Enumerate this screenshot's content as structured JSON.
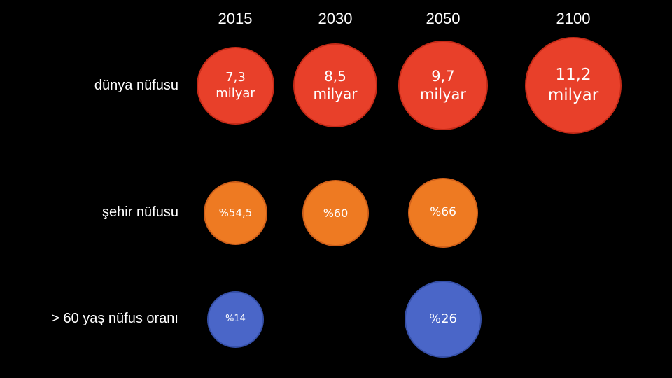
{
  "chart_data": {
    "type": "table",
    "years": [
      "2015",
      "2030",
      "2050",
      "2100"
    ],
    "rows": [
      {
        "key": "world",
        "label": "dünya nüfusu",
        "color": "#e8402a",
        "border": "#c62b18",
        "cells": [
          {
            "year": "2015",
            "value": 7.3,
            "text": [
              "7,3",
              "milyar"
            ]
          },
          {
            "year": "2030",
            "value": 8.5,
            "text": [
              "8,5",
              "milyar"
            ]
          },
          {
            "year": "2050",
            "value": 9.7,
            "text": [
              "9,7",
              "milyar"
            ]
          },
          {
            "year": "2100",
            "value": 11.2,
            "text": [
              "11,2",
              "milyar"
            ]
          }
        ]
      },
      {
        "key": "urban",
        "label": "şehir nüfusu",
        "color": "#ee7a22",
        "border": "#d0601a",
        "cells": [
          {
            "year": "2015",
            "value": 54.5,
            "text": [
              "%54,5"
            ]
          },
          {
            "year": "2030",
            "value": 60,
            "text": [
              "%60"
            ]
          },
          {
            "year": "2050",
            "value": 66,
            "text": [
              "%66"
            ]
          }
        ]
      },
      {
        "key": "over60",
        "label": "> 60 yaş nüfus oranı",
        "color": "#4a66c8",
        "border": "#3650a8",
        "cells": [
          {
            "year": "2015",
            "value": 14,
            "text": [
              "%14"
            ]
          },
          {
            "year": "2050",
            "value": 26,
            "text": [
              "%26"
            ]
          }
        ]
      }
    ]
  }
}
